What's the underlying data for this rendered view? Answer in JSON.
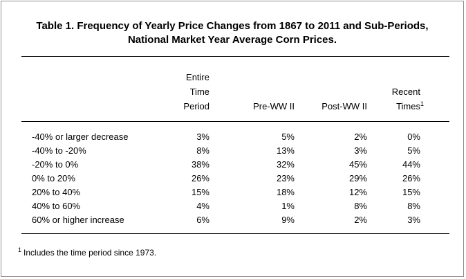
{
  "table": {
    "title_line1": "Table 1. Frequency of Yearly Price Changes from 1867 to 2011 and Sub-Periods,",
    "title_line2": "National Market Year Average Corn Prices.",
    "headers": {
      "entire": [
        "Entire",
        "Time",
        "Period"
      ],
      "pre_ww2": "Pre-WW II",
      "post_ww2": "Post-WW II",
      "recent": [
        "Recent",
        "Times"
      ],
      "recent_footnote_marker": "1"
    },
    "rows": [
      {
        "label": "-40% or larger decrease",
        "entire": "3%",
        "pre_ww2": "5%",
        "post_ww2": "2%",
        "recent": "0%"
      },
      {
        "label": "-40% to -20%",
        "entire": "8%",
        "pre_ww2": "13%",
        "post_ww2": "3%",
        "recent": "5%"
      },
      {
        "label": "-20% to 0%",
        "entire": "38%",
        "pre_ww2": "32%",
        "post_ww2": "45%",
        "recent": "44%"
      },
      {
        "label": "0% to 20%",
        "entire": "26%",
        "pre_ww2": "23%",
        "post_ww2": "29%",
        "recent": "26%"
      },
      {
        "label": "20% to 40%",
        "entire": "15%",
        "pre_ww2": "18%",
        "post_ww2": "12%",
        "recent": "15%"
      },
      {
        "label": "40% to 60%",
        "entire": "4%",
        "pre_ww2": "1%",
        "post_ww2": "8%",
        "recent": "8%"
      },
      {
        "label": "60% or higher increase",
        "entire": "6%",
        "pre_ww2": "9%",
        "post_ww2": "2%",
        "recent": "3%"
      }
    ],
    "footnote": {
      "marker": "1",
      "text": "Includes the time period since 1973."
    }
  }
}
